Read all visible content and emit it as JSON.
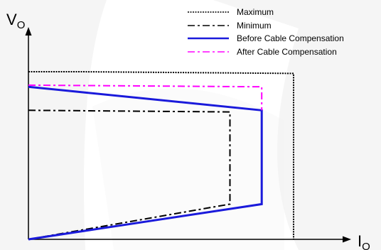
{
  "chart_data": {
    "type": "line",
    "xlabel": {
      "main": "I",
      "sub": "O"
    },
    "ylabel": {
      "main": "V",
      "sub": "O"
    },
    "xlim": [
      0,
      100
    ],
    "ylim": [
      0,
      100
    ],
    "grid": false,
    "legend_position": "top-right",
    "series": [
      {
        "name": "Maximum",
        "color": "#000000",
        "dash": "dotted",
        "width": 2,
        "points": [
          [
            0,
            100
          ],
          [
            20,
            100
          ],
          [
            100,
            99
          ],
          [
            100,
            0
          ]
        ]
      },
      {
        "name": "Minimum",
        "color": "#000000",
        "dash": "dash-dot",
        "width": 2,
        "points": [
          [
            0,
            77
          ],
          [
            76,
            76
          ],
          [
            76,
            21
          ],
          [
            0,
            0
          ]
        ]
      },
      {
        "name": "Before Cable Compensation",
        "color": "#1a1adb",
        "dash": "solid",
        "width": 3,
        "points": [
          [
            0,
            91
          ],
          [
            88,
            77
          ],
          [
            88,
            21
          ],
          [
            0,
            0
          ]
        ]
      },
      {
        "name": "After Cable Compensation",
        "color": "#ff00ff",
        "dash": "dash-dot",
        "width": 2,
        "points": [
          [
            0,
            92
          ],
          [
            88,
            91
          ],
          [
            88,
            77
          ]
        ]
      }
    ]
  }
}
